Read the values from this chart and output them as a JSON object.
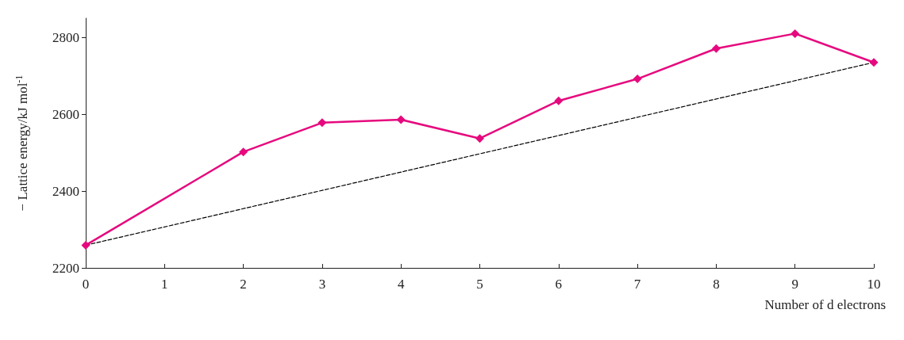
{
  "chart_data": {
    "type": "line",
    "xlabel": "Number of d electrons",
    "ylabel": "− Lattice energy/kJ mol$^{-1}$",
    "xlim": [
      0,
      10
    ],
    "xticks": [
      0,
      1,
      2,
      3,
      4,
      5,
      6,
      7,
      8,
      9,
      10
    ],
    "ylim": [
      2200,
      2850
    ],
    "yticks": [
      2200,
      2400,
      2600,
      2800
    ],
    "grid": false,
    "series": [
      {
        "color": "#e6097e",
        "marker": "diamond",
        "line_style": "solid",
        "x": [
          0,
          2,
          3,
          4,
          5,
          6,
          7,
          8,
          9,
          10
        ],
        "values": [
          2259,
          2502,
          2578,
          2586,
          2537,
          2635,
          2692,
          2771,
          2810,
          2735
        ]
      },
      {
        "color": "#000000",
        "marker": "none",
        "line_style": "dashed",
        "x": [
          0,
          10
        ],
        "values": [
          2259,
          2735
        ]
      }
    ]
  }
}
